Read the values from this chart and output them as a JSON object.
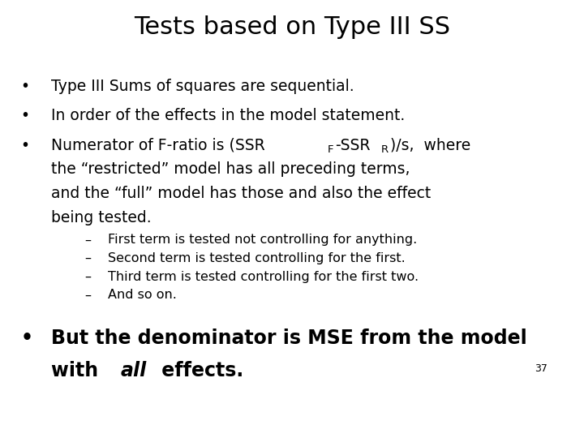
{
  "title": "Tests based on Type III SS",
  "title_fontsize": 22,
  "background_color": "#ffffff",
  "text_color": "#000000",
  "bullet1": "Type III Sums of squares are sequential.",
  "bullet2": "In order of the effects in the model statement.",
  "bullet3_part1": "Numerator of F-ratio is (SSR",
  "bullet3_F": "F",
  "bullet3_mid": "-SSR",
  "bullet3_R": "R",
  "bullet3_part2": ")/s,  where",
  "bullet3_line2": "the “restricted” model has all preceding terms,",
  "bullet3_line3": "and the “full” model has those and also the effect",
  "bullet3_line4": "being tested.",
  "sub1": "First term is tested not controlling for anything.",
  "sub2": "Second term is tested controlling for the first.",
  "sub3": "Third term is tested controlling for the first two.",
  "sub4": "And so on.",
  "bullet4_part1": "But the denominator is MSE from the model",
  "bullet4_part2": "with ",
  "bullet4_italic": "all",
  "bullet4_part3": " effects.",
  "page_num": "37",
  "main_fontsize": 13.5,
  "bold_fontsize": 17,
  "sub_fontsize": 11.5
}
